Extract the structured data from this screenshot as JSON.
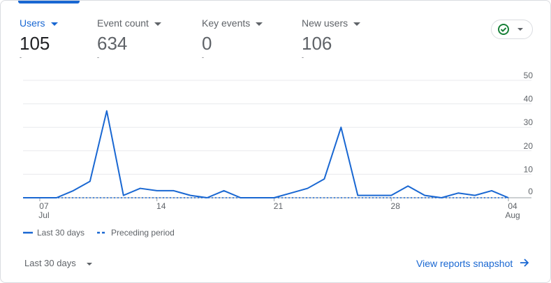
{
  "metrics": [
    {
      "label": "Users",
      "value": "105",
      "sub": "-"
    },
    {
      "label": "Event count",
      "value": "634",
      "sub": "-"
    },
    {
      "label": "Key events",
      "value": "0",
      "sub": "-"
    },
    {
      "label": "New users",
      "value": "106",
      "sub": "-"
    }
  ],
  "chart_data": {
    "type": "line",
    "categories": [
      null,
      "07\nJul",
      null,
      null,
      null,
      null,
      null,
      null,
      "14",
      null,
      null,
      null,
      null,
      null,
      null,
      "21",
      null,
      null,
      null,
      null,
      null,
      null,
      "28",
      null,
      null,
      null,
      null,
      null,
      null,
      "04\nAug"
    ],
    "series": [
      {
        "name": "Last 30 days",
        "color": "#1967d2",
        "style": "solid",
        "values": [
          0,
          0,
          0,
          3,
          7,
          37,
          1,
          4,
          3,
          3,
          1,
          0,
          3,
          0,
          0,
          0,
          2,
          4,
          8,
          30,
          1,
          1,
          1,
          5,
          1,
          0,
          2,
          1,
          3,
          0
        ]
      },
      {
        "name": "Preceding period",
        "color": "#1967d2",
        "style": "dashed",
        "values": [
          0,
          0,
          0,
          0,
          0,
          0,
          0,
          0,
          0,
          0,
          0,
          0,
          0,
          0,
          0,
          0,
          0,
          0,
          0,
          0,
          0,
          0,
          0,
          0,
          0,
          0,
          0,
          0,
          0,
          0
        ]
      }
    ],
    "ylim": [
      0,
      50
    ],
    "yticks": [
      0,
      10,
      20,
      30,
      40,
      50
    ],
    "grid": true,
    "y_axis_side": "right",
    "legend": "bottom-left"
  },
  "footer": {
    "range": "Last 30 days",
    "link": "View reports snapshot"
  }
}
